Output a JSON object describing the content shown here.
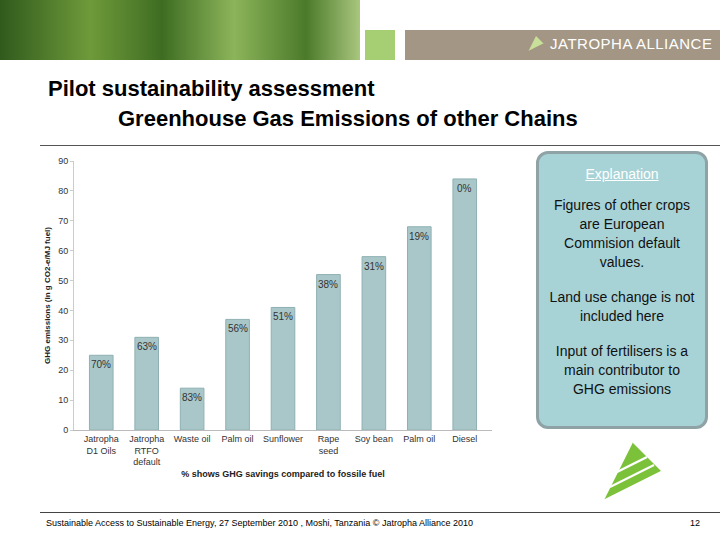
{
  "slide": {
    "logo_text": "JATROPHA ALLIANCE",
    "title": "Pilot sustainability assessment",
    "subtitle": "Greenhouse Gas Emissions of other Chains",
    "explanation": {
      "heading": "Explanation",
      "paragraphs": [
        "Figures of other crops are European Commision default values.",
        "Land use change is not included here",
        "Input of fertilisers is a main contributor to GHG emissions"
      ]
    },
    "footer": "Sustainable Access to Sustainable Energy, 27 September 2010 , Moshi, Tanzania © Jatropha Alliance 2010",
    "page_number": "12"
  },
  "chart_data": {
    "type": "bar",
    "y_label": "GHG emissions (in g CO2-e/MJ fuel)",
    "x_label": "% shows GHG savings compared to fossile fuel",
    "categories": [
      "Jatropha\nD1 Oils",
      "Jatropha\nRTFO\ndefault",
      "Waste oil",
      "Palm oil",
      "Sunflower",
      "Rape\nseed",
      "Soy bean",
      "Palm oil",
      "Diesel"
    ],
    "values": [
      25,
      31,
      14,
      37,
      41,
      52,
      58,
      68,
      84
    ],
    "bar_notes": [
      "70%",
      "63%",
      "83%",
      "56%",
      "51%",
      "38%",
      "31%",
      "19%",
      "0%"
    ],
    "color": "#a9c7c9",
    "ylim": [
      0,
      90
    ],
    "yticks": [
      0,
      10,
      20,
      30,
      40,
      50,
      60,
      70,
      80,
      90
    ],
    "grid": false
  }
}
